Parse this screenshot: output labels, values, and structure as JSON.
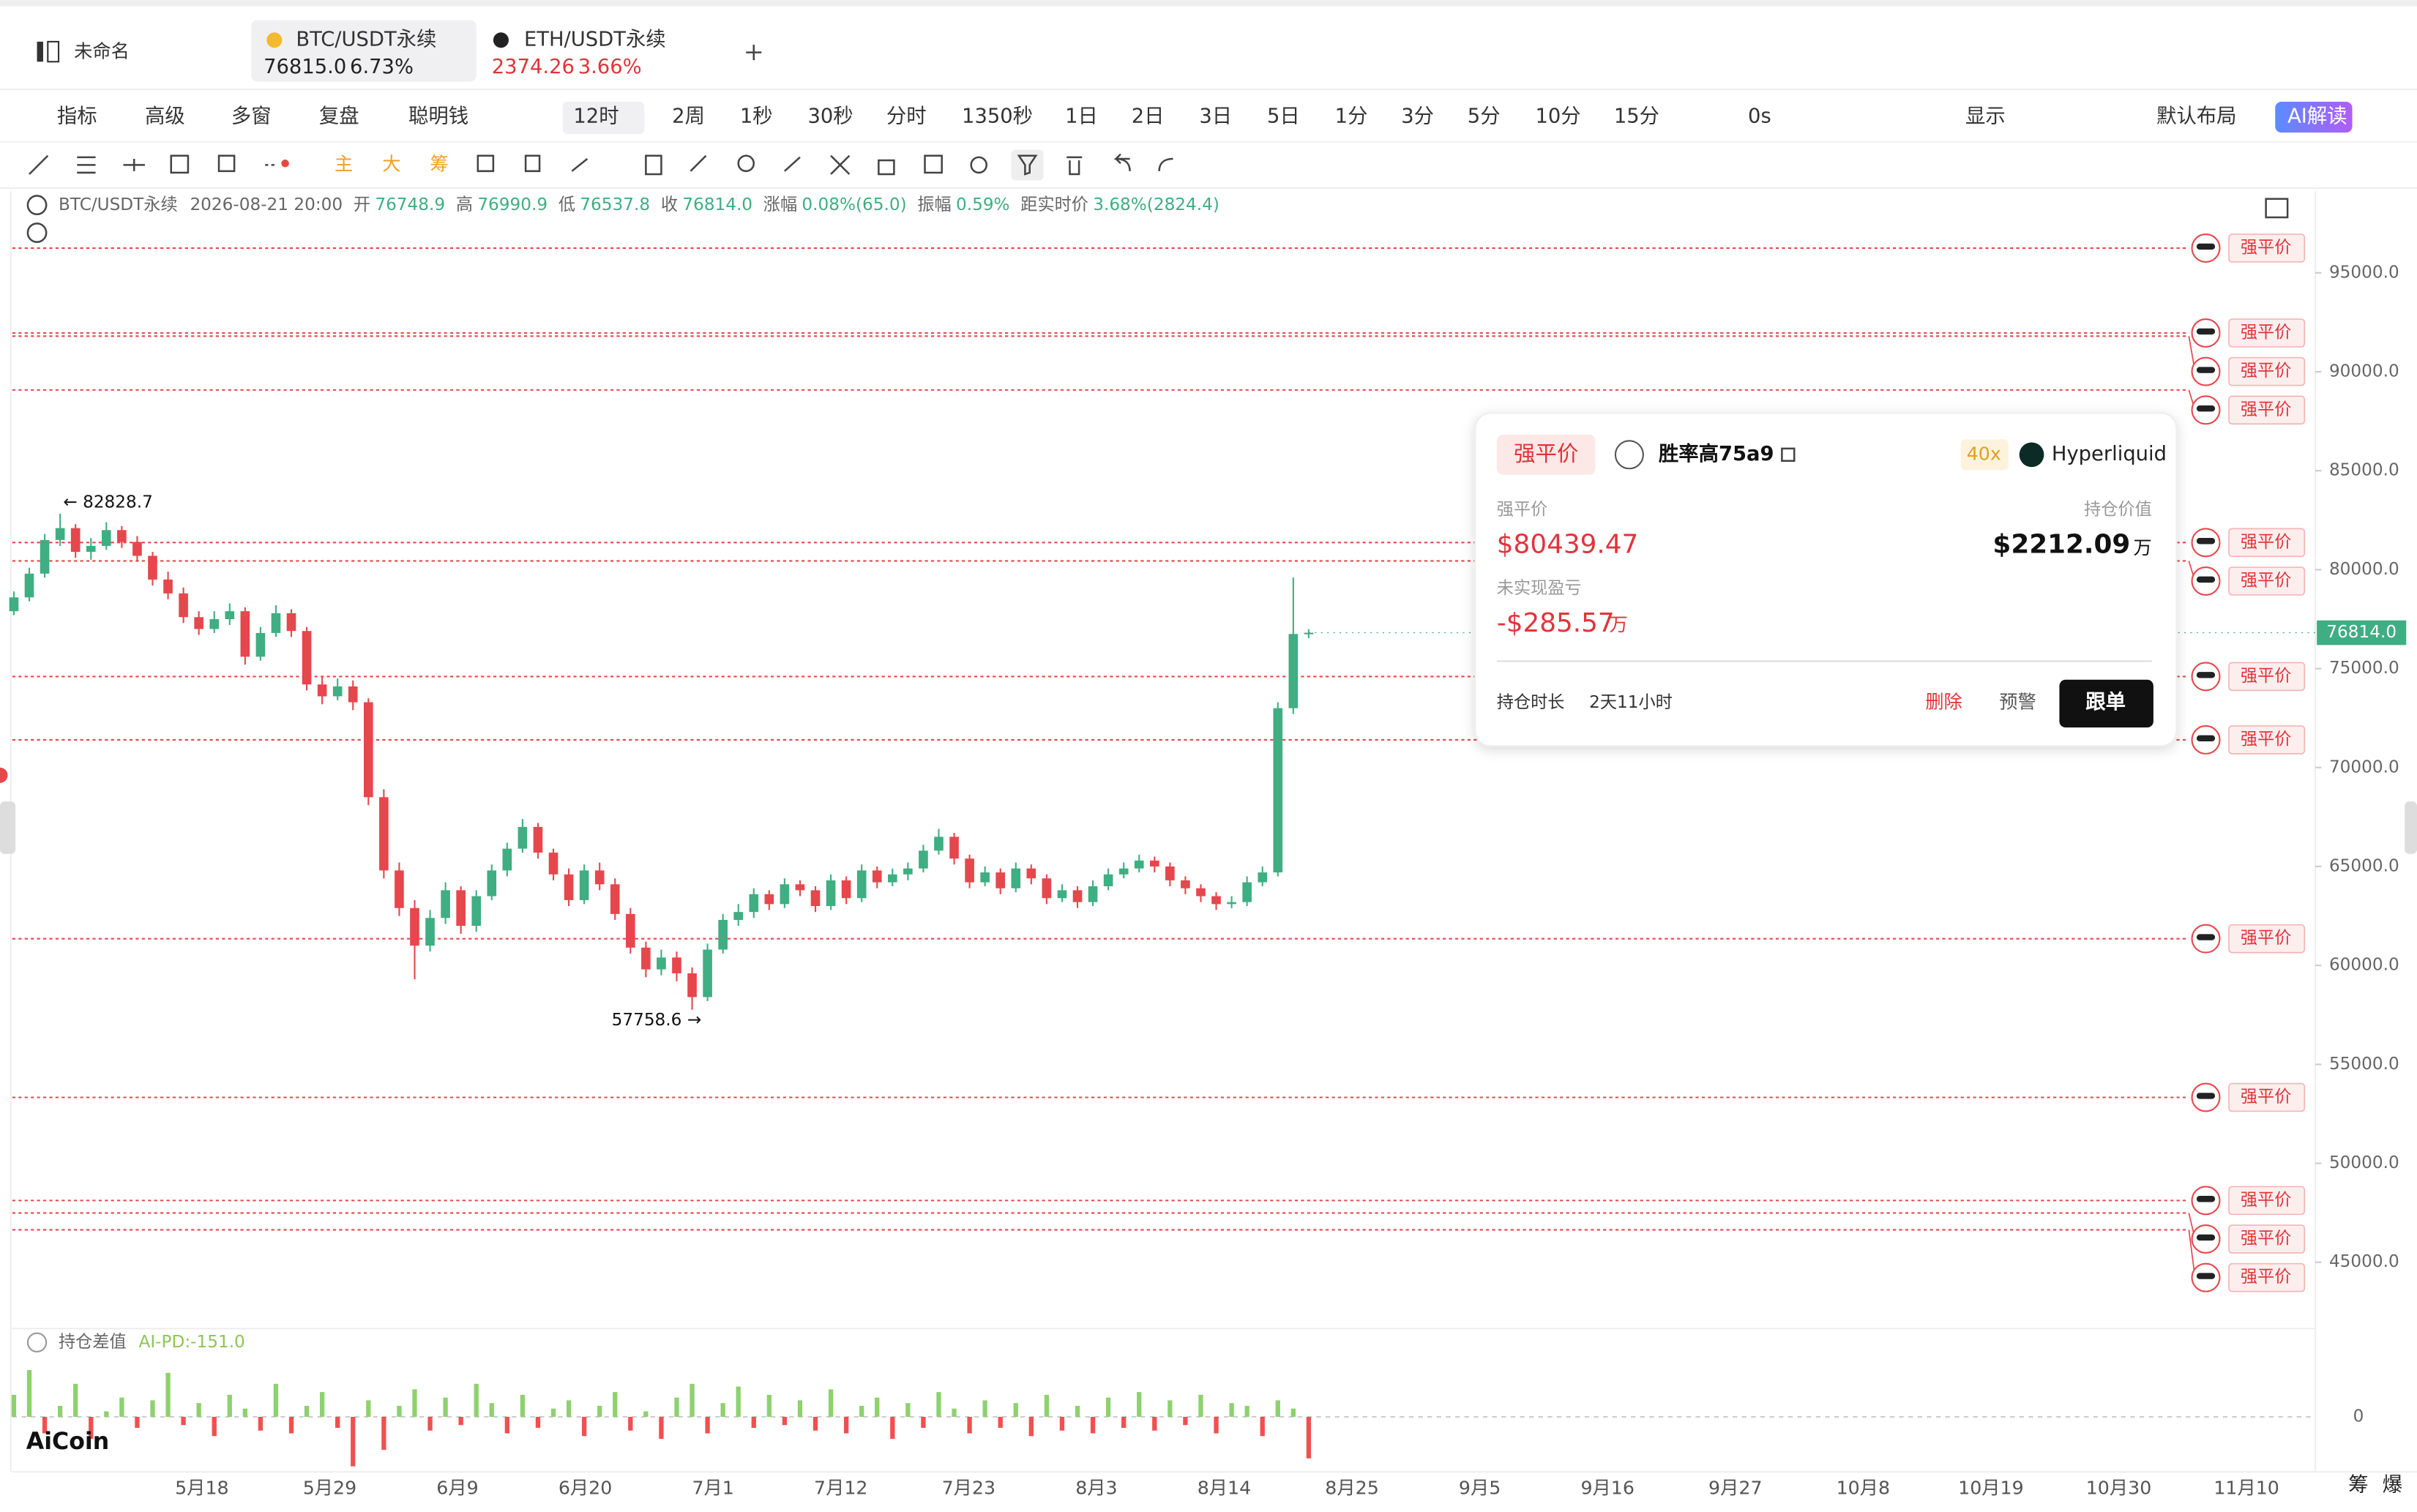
{
  "tabs": {
    "untitled": "未命名",
    "items": [
      {
        "label": "BTC/USDT永续",
        "price": "76815.0",
        "change": "6.73%"
      },
      {
        "label": "ETH/USDT永续",
        "price": "2374.26",
        "change": "3.66%"
      }
    ]
  },
  "toolbar": [
    "指标",
    "高级",
    "多窗",
    "复盘",
    "聪明钱",
    "12时",
    "2周",
    "1秒",
    "30秒",
    "分时",
    "1350秒",
    "1日",
    "2日",
    "3日",
    "5日",
    "1分",
    "3分",
    "5分",
    "10分",
    "15分",
    "0s",
    "显示",
    "默认布局",
    "AI解读"
  ],
  "draw_tools": [
    "主",
    "大",
    "筹"
  ],
  "chart_data": {
    "type": "candlestick",
    "info": {
      "symbol": "BTC/USDT永续",
      "time": "2026-08-21 20:00",
      "fields": [
        {
          "label": "开",
          "value": "76748.9"
        },
        {
          "label": "高",
          "value": "76990.9"
        },
        {
          "label": "低",
          "value": "76537.8"
        },
        {
          "label": "收",
          "value": "76814.0"
        },
        {
          "label": "涨幅",
          "value": "0.08%(65.0)"
        },
        {
          "label": "振幅",
          "value": "0.59%"
        },
        {
          "label": "距实时价",
          "value": "3.68%(2824.4)"
        }
      ]
    },
    "up_color": "#3fae82",
    "down_color": "#e5474d",
    "ylim": [
      42000,
      97500
    ],
    "yticks": [
      {
        "value": 45000,
        "label": "45000.0"
      },
      {
        "value": 50000,
        "label": "50000.0"
      },
      {
        "value": 55000,
        "label": "55000.0"
      },
      {
        "value": 60000,
        "label": "60000.0"
      },
      {
        "value": 65000,
        "label": "65000.0"
      },
      {
        "value": 70000,
        "label": "70000.0"
      },
      {
        "value": 75000,
        "label": "75000.0"
      },
      {
        "value": 80000,
        "label": "80000.0"
      },
      {
        "value": 85000,
        "label": "85000.0"
      },
      {
        "value": 90000,
        "label": "90000.0"
      },
      {
        "value": 95000,
        "label": "95000.0"
      }
    ],
    "last_price": {
      "value": 76814,
      "label": "76814.0"
    },
    "categories": [
      "5月18",
      "5月29",
      "6月9",
      "6月20",
      "7月1",
      "7月12",
      "7月23",
      "8月3",
      "8月14",
      "8月25",
      "9月5",
      "9月16",
      "9月27",
      "10月8",
      "10月19",
      "10月30",
      "11月10"
    ],
    "extremes": [
      "← 82828.7",
      "57758.6 →"
    ],
    "candles": [
      [
        77900,
        78900,
        77700,
        78600
      ],
      [
        78600,
        80100,
        78400,
        79800
      ],
      [
        79800,
        81800,
        79600,
        81500
      ],
      [
        81500,
        82828.7,
        81200,
        82100
      ],
      [
        82100,
        82300,
        80600,
        80900
      ],
      [
        80900,
        81600,
        80500,
        81200
      ],
      [
        81200,
        82400,
        81000,
        82000
      ],
      [
        82000,
        82200,
        81100,
        81400
      ],
      [
        81400,
        81700,
        80400,
        80700
      ],
      [
        80700,
        80900,
        79200,
        79500
      ],
      [
        79500,
        79900,
        78500,
        78800
      ],
      [
        78800,
        79100,
        77300,
        77600
      ],
      [
        77600,
        77900,
        76700,
        77000
      ],
      [
        77000,
        77900,
        76800,
        77500
      ],
      [
        77500,
        78300,
        77200,
        77900
      ],
      [
        77900,
        78100,
        75200,
        75600
      ],
      [
        75600,
        77100,
        75400,
        76800
      ],
      [
        76800,
        78200,
        76600,
        77800
      ],
      [
        77800,
        78000,
        76600,
        76900
      ],
      [
        76900,
        77100,
        73900,
        74200
      ],
      [
        74200,
        74600,
        73200,
        73600
      ],
      [
        73600,
        74500,
        73400,
        74100
      ],
      [
        74100,
        74400,
        72900,
        73300
      ],
      [
        73300,
        73500,
        68100,
        68500
      ],
      [
        68500,
        68900,
        64400,
        64800
      ],
      [
        64800,
        65200,
        62500,
        62900
      ],
      [
        62900,
        63300,
        59300,
        61000
      ],
      [
        61000,
        62800,
        60700,
        62400
      ],
      [
        62400,
        64200,
        62100,
        63800
      ],
      [
        63800,
        64000,
        61600,
        62000
      ],
      [
        62000,
        63800,
        61700,
        63500
      ],
      [
        63500,
        65100,
        63300,
        64800
      ],
      [
        64800,
        66200,
        64500,
        65900
      ],
      [
        65900,
        67400,
        65700,
        67000
      ],
      [
        67000,
        67200,
        65400,
        65700
      ],
      [
        65700,
        65900,
        64300,
        64600
      ],
      [
        64600,
        64900,
        63000,
        63300
      ],
      [
        63300,
        65100,
        63100,
        64800
      ],
      [
        64800,
        65200,
        63800,
        64100
      ],
      [
        64100,
        64400,
        62300,
        62600
      ],
      [
        62600,
        62900,
        60600,
        60900
      ],
      [
        60900,
        61200,
        59400,
        59800
      ],
      [
        59800,
        60800,
        59500,
        60400
      ],
      [
        60400,
        60700,
        59200,
        59600
      ],
      [
        59600,
        59900,
        57758.6,
        58400
      ],
      [
        58400,
        61100,
        58200,
        60800
      ],
      [
        60800,
        62600,
        60600,
        62300
      ],
      [
        62300,
        63100,
        62000,
        62700
      ],
      [
        62700,
        63900,
        62400,
        63600
      ],
      [
        63600,
        63800,
        62800,
        63100
      ],
      [
        63100,
        64400,
        62900,
        64100
      ],
      [
        64100,
        64300,
        63500,
        63800
      ],
      [
        63800,
        64000,
        62700,
        63000
      ],
      [
        63000,
        64600,
        62800,
        64300
      ],
      [
        64300,
        64500,
        63100,
        63400
      ],
      [
        63400,
        65100,
        63200,
        64800
      ],
      [
        64800,
        65000,
        63900,
        64200
      ],
      [
        64200,
        64900,
        64000,
        64600
      ],
      [
        64600,
        65200,
        64300,
        64900
      ],
      [
        64900,
        66100,
        64700,
        65800
      ],
      [
        65800,
        66900,
        65600,
        66500
      ],
      [
        66500,
        66700,
        65100,
        65400
      ],
      [
        65400,
        65600,
        63900,
        64200
      ],
      [
        64200,
        65000,
        64000,
        64700
      ],
      [
        64700,
        64900,
        63600,
        63900
      ],
      [
        63900,
        65200,
        63700,
        64900
      ],
      [
        64900,
        65100,
        64100,
        64400
      ],
      [
        64400,
        64600,
        63100,
        63400
      ],
      [
        63400,
        64100,
        63200,
        63800
      ],
      [
        63800,
        64000,
        62900,
        63200
      ],
      [
        63200,
        64300,
        63000,
        64000
      ],
      [
        64000,
        64900,
        63800,
        64600
      ],
      [
        64600,
        65200,
        64400,
        64900
      ],
      [
        64900,
        65600,
        64700,
        65300
      ],
      [
        65300,
        65500,
        64700,
        65000
      ],
      [
        65000,
        65200,
        64000,
        64300
      ],
      [
        64300,
        64500,
        63600,
        63900
      ],
      [
        63900,
        64100,
        63200,
        63500
      ],
      [
        63500,
        63700,
        62800,
        63100
      ],
      [
        63100,
        63500,
        62900,
        63200
      ],
      [
        63200,
        64500,
        63000,
        64200
      ],
      [
        64200,
        65000,
        64000,
        64700
      ],
      [
        64700,
        73300,
        64500,
        73000
      ],
      [
        73000,
        79600,
        72700,
        76748.9
      ],
      [
        76748.9,
        76990.9,
        76537.8,
        76814
      ]
    ],
    "liquidations": [
      {
        "price": 96250,
        "label": "强平价"
      },
      {
        "price": 91960,
        "label": "强平价"
      },
      {
        "price": 91800,
        "label": "强平价"
      },
      {
        "price": 89080,
        "label": "强平价"
      },
      {
        "price": 81370,
        "label": "强平价"
      },
      {
        "price": 80440,
        "label": "强平价"
      },
      {
        "price": 74600,
        "label": "强平价"
      },
      {
        "price": 71400,
        "label": "强平价"
      },
      {
        "price": 61350,
        "label": "强平价"
      },
      {
        "price": 53330,
        "label": "强平价"
      },
      {
        "price": 48120,
        "label": "强平价"
      },
      {
        "price": 47490,
        "label": "强平价"
      },
      {
        "price": 46640,
        "label": "强平价"
      }
    ],
    "indicator": {
      "type": "bar",
      "title": "持仓差值",
      "value_label": "AI-PD:-151.0",
      "ylim": [
        -200,
        220
      ],
      "yticks": [
        0
      ],
      "values": [
        80,
        170,
        -60,
        40,
        120,
        -80,
        20,
        70,
        -40,
        60,
        160,
        -30,
        50,
        -70,
        80,
        30,
        -50,
        120,
        -60,
        40,
        90,
        -40,
        -180,
        60,
        -120,
        40,
        100,
        -50,
        70,
        -30,
        120,
        50,
        -60,
        80,
        -40,
        30,
        60,
        -70,
        40,
        90,
        -50,
        20,
        -80,
        70,
        120,
        -60,
        50,
        110,
        -40,
        80,
        -30,
        60,
        -50,
        100,
        -60,
        40,
        70,
        -80,
        50,
        -40,
        90,
        30,
        -60,
        60,
        -40,
        50,
        -70,
        80,
        -50,
        40,
        -60,
        70,
        -40,
        90,
        -50,
        60,
        -30,
        80,
        -60,
        50,
        40,
        -70,
        60,
        30,
        -151
      ]
    },
    "popup": {
      "tag": "强平价",
      "trader": "胜率高75a9",
      "leverage": "40x",
      "exchange": "Hyperliquid",
      "liq_label": "强平价",
      "liq_price": "$80439.47",
      "value_label": "持仓价值",
      "value": "$2212.09",
      "value_unit": "万",
      "pnl_label": "未实现盈亏",
      "pnl": "-$285.57",
      "pnl_unit": "万",
      "duration_label": "持仓时长",
      "duration": "2天11小时",
      "actions": [
        "删除",
        "预警",
        "跟单"
      ]
    }
  },
  "footer": {
    "logo": "AiCoin",
    "tools": [
      "筹",
      "爆"
    ]
  }
}
